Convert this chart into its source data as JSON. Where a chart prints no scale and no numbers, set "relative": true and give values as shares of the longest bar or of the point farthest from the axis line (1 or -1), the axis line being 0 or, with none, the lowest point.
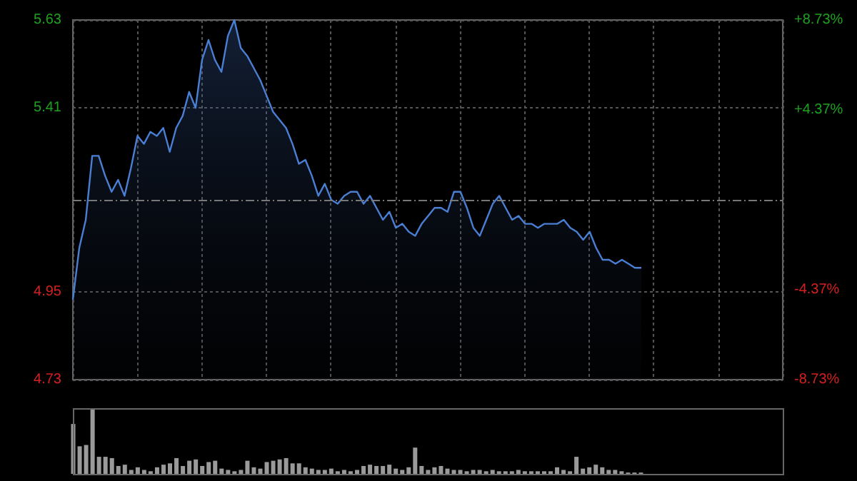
{
  "chart_data": [
    {
      "type": "area",
      "color": "#4a7fd4",
      "categories": [
        null,
        null,
        null,
        null,
        null,
        null,
        null,
        null,
        null,
        null,
        null,
        null,
        null,
        null,
        null,
        null,
        null,
        null,
        null,
        null,
        null,
        null,
        null,
        null,
        null,
        null,
        null,
        null,
        null,
        null,
        null,
        null,
        null,
        null,
        null,
        null,
        null,
        null,
        null,
        null,
        null,
        null,
        null,
        null,
        null,
        null,
        null,
        null,
        null,
        null,
        null,
        null,
        null,
        null,
        null,
        null,
        null,
        null,
        null,
        null,
        null,
        null,
        null,
        null,
        null,
        null,
        null,
        null,
        null,
        null,
        null,
        null,
        null,
        null,
        null,
        null,
        null,
        null,
        null,
        null,
        null,
        null,
        null,
        null,
        null,
        null,
        null,
        null,
        null
      ],
      "values": [
        4.93,
        5.06,
        5.13,
        5.29,
        5.29,
        5.24,
        5.2,
        5.23,
        5.19,
        5.26,
        5.34,
        5.32,
        5.35,
        5.34,
        5.36,
        5.3,
        5.36,
        5.39,
        5.45,
        5.41,
        5.53,
        5.58,
        5.53,
        5.5,
        5.59,
        5.63,
        5.56,
        5.54,
        5.51,
        5.48,
        5.44,
        5.4,
        5.38,
        5.36,
        5.32,
        5.27,
        5.28,
        5.24,
        5.19,
        5.22,
        5.18,
        5.17,
        5.19,
        5.2,
        5.2,
        5.17,
        5.19,
        5.16,
        5.13,
        5.15,
        5.11,
        5.12,
        5.1,
        5.09,
        5.12,
        5.14,
        5.16,
        5.16,
        5.15,
        5.2,
        5.2,
        5.16,
        5.11,
        5.09,
        5.13,
        5.17,
        5.19,
        5.16,
        5.13,
        5.14,
        5.12,
        5.12,
        5.11,
        5.12,
        5.12,
        5.12,
        5.13,
        5.11,
        5.1,
        5.08,
        5.1,
        5.06,
        5.03,
        5.03,
        5.02,
        5.03,
        5.02,
        5.01,
        5.01
      ],
      "ylim": [
        4.73,
        5.63
      ],
      "yticks": [
        5.63,
        5.41,
        4.95,
        4.73
      ],
      "y2lim": [
        -8.73,
        8.73
      ],
      "y2ticks": [
        {
          "value": 8.73,
          "label": "+8.73%"
        },
        {
          "value": 4.37,
          "label": "+4.37%"
        },
        {
          "value": -4.37,
          "label": "-4.37%"
        },
        {
          "value": -8.73,
          "label": "-8.73%"
        }
      ],
      "ref_lines": [
        {
          "axis": "y",
          "value": 5.18,
          "label": null
        }
      ],
      "grid": true
    },
    {
      "type": "bar",
      "color": "#9a9a9a",
      "relative": true,
      "categories": [
        null,
        null,
        null,
        null,
        null,
        null,
        null,
        null,
        null,
        null,
        null,
        null,
        null,
        null,
        null,
        null,
        null,
        null,
        null,
        null,
        null,
        null,
        null,
        null,
        null,
        null,
        null,
        null,
        null,
        null,
        null,
        null,
        null,
        null,
        null,
        null,
        null,
        null,
        null,
        null,
        null,
        null,
        null,
        null,
        null,
        null,
        null,
        null,
        null,
        null,
        null,
        null,
        null,
        null,
        null,
        null,
        null,
        null,
        null,
        null,
        null,
        null,
        null,
        null,
        null,
        null,
        null,
        null,
        null,
        null,
        null,
        null,
        null,
        null,
        null,
        null,
        null,
        null,
        null,
        null,
        null,
        null,
        null,
        null,
        null,
        null,
        null,
        null,
        null
      ],
      "values": [
        0.76,
        0.42,
        0.44,
        1,
        0.26,
        0.26,
        0.24,
        0.12,
        0.14,
        0.06,
        0.1,
        0.06,
        0.04,
        0.1,
        0.14,
        0.16,
        0.24,
        0.12,
        0.2,
        0.22,
        0.12,
        0.18,
        0.2,
        0.08,
        0.06,
        0.04,
        0.06,
        0.2,
        0.1,
        0.08,
        0.18,
        0.2,
        0.22,
        0.24,
        0.16,
        0.16,
        0.1,
        0.08,
        0.06,
        0.06,
        0.08,
        0.04,
        0.06,
        0.04,
        0.06,
        0.12,
        0.14,
        0.12,
        0.12,
        0.14,
        0.08,
        0.06,
        0.1,
        0.4,
        0.12,
        0.06,
        0.1,
        0.12,
        0.08,
        0.06,
        0.06,
        0.04,
        0.06,
        0.06,
        0.04,
        0.06,
        0.04,
        0.04,
        0.04,
        0.06,
        0.04,
        0.04,
        0.04,
        0.04,
        0.04,
        0.1,
        0.06,
        0.04,
        0.26,
        0.08,
        0.1,
        0.14,
        0.1,
        0.06,
        0.06,
        0.04,
        0.02,
        0.02,
        0.02
      ]
    }
  ]
}
